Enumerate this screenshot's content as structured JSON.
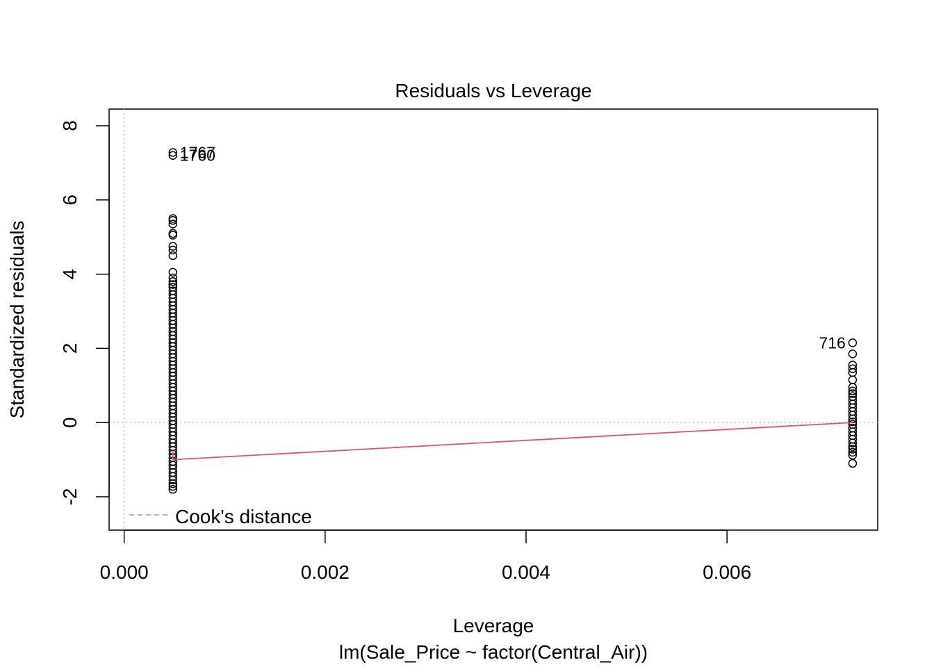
{
  "chart_data": {
    "type": "scatter",
    "title": "Residuals vs Leverage",
    "xlabel": "Leverage",
    "subtitle": "lm(Sale_Price ~ factor(Central_Air))",
    "ylabel": "Standardized residuals",
    "xlim": [
      -0.00015,
      0.0075
    ],
    "ylim": [
      -2.9,
      8.45
    ],
    "x_ticks": [
      0.0,
      0.002,
      0.004,
      0.006
    ],
    "x_tick_labels": [
      "0.000",
      "0.002",
      "0.004",
      "0.006"
    ],
    "y_ticks": [
      -2,
      0,
      2,
      4,
      6,
      8
    ],
    "y_tick_labels": [
      "-2",
      "0",
      "2",
      "4",
      "6",
      "8"
    ],
    "reference_lines": {
      "x": 0,
      "y": 0,
      "style": "dotted",
      "color": "#bebebe"
    },
    "legend": {
      "label": "Cook's distance",
      "position": "bottom-left",
      "color": "#999999"
    },
    "series": [
      {
        "leverage": 0.000485,
        "residuals": [
          7.28,
          7.2,
          5.5,
          5.45,
          5.35,
          5.1,
          5.05,
          4.75,
          4.65,
          4.5,
          4.05,
          3.9,
          3.8,
          3.72,
          3.65,
          3.55,
          3.45,
          3.35,
          3.25,
          3.15,
          3.05,
          2.95,
          2.85,
          2.75,
          2.65,
          2.55,
          2.45,
          2.35,
          2.25,
          2.15,
          2.05,
          1.95,
          1.85,
          1.75,
          1.65,
          1.55,
          1.45,
          1.35,
          1.25,
          1.15,
          1.05,
          0.95,
          0.85,
          0.75,
          0.65,
          0.55,
          0.45,
          0.35,
          0.25,
          0.15,
          0.05,
          -0.05,
          -0.15,
          -0.25,
          -0.35,
          -0.45,
          -0.55,
          -0.65,
          -0.75,
          -0.85,
          -0.95,
          -1.05,
          -1.15,
          -1.25,
          -1.35,
          -1.45,
          -1.55,
          -1.65,
          -1.72,
          -1.8
        ]
      },
      {
        "leverage": 0.00725,
        "residuals": [
          2.15,
          1.85,
          1.55,
          1.45,
          1.35,
          1.15,
          0.95,
          0.85,
          0.78,
          0.7,
          0.6,
          0.5,
          0.4,
          0.3,
          0.2,
          0.1,
          0.02,
          -0.05,
          -0.15,
          -0.25,
          -0.35,
          -0.45,
          -0.55,
          -0.65,
          -0.72,
          -0.8,
          -0.88,
          -1.1
        ]
      }
    ],
    "point_labels": [
      {
        "text": "1767",
        "x": 0.000485,
        "y": 7.28,
        "side": "right"
      },
      {
        "text": "1760",
        "x": 0.000485,
        "y": 7.2,
        "side": "right"
      },
      {
        "text": "716",
        "x": 0.00725,
        "y": 2.15,
        "side": "left"
      }
    ],
    "smoother": {
      "color": "#df536b",
      "x": [
        0.000485,
        0.000485,
        0.00725
      ],
      "y": [
        -0.75,
        -1.0,
        0.0
      ]
    }
  }
}
